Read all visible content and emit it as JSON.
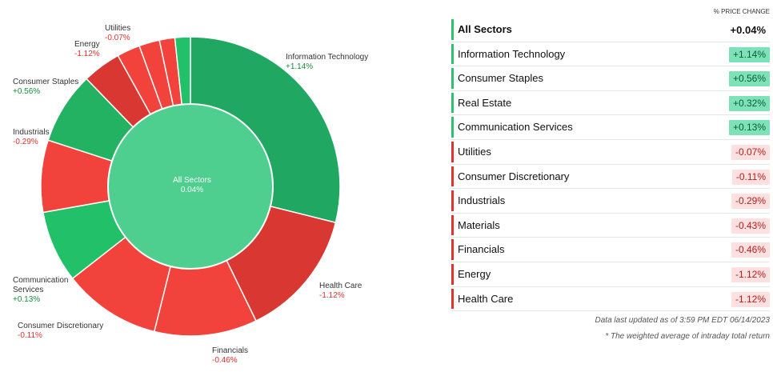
{
  "chart_data": {
    "type": "pie",
    "variant": "donut",
    "center": {
      "title": "All Sectors",
      "value": "0.04%"
    },
    "slices": [
      {
        "name": "Information Technology",
        "value": 1.14,
        "label": "+1.14%",
        "color": "#20a862"
      },
      {
        "name": "Health Care",
        "value": -1.12,
        "label": "-1.12%",
        "color": "#d93832"
      },
      {
        "name": "Financials",
        "value": -0.46,
        "label": "-0.46%",
        "color": "#f1433c"
      },
      {
        "name": "Consumer Discretionary",
        "value": -0.11,
        "label": "-0.11%",
        "color": "#f1433c"
      },
      {
        "name": "Communication Services",
        "value": 0.13,
        "label": "+0.13%",
        "color": "#22c069"
      },
      {
        "name": "Industrials",
        "value": -0.29,
        "label": "-0.29%",
        "color": "#f1433c"
      },
      {
        "name": "Consumer Staples",
        "value": 0.56,
        "label": "+0.56%",
        "color": "#22b262"
      },
      {
        "name": "Energy",
        "value": -1.12,
        "label": "-1.12%",
        "color": "#d93832"
      },
      {
        "name": "Materials",
        "value": -0.43,
        "label": "",
        "color": "#f1433c"
      },
      {
        "name": "Real Estate",
        "value": 0.32,
        "label": "",
        "color": "#f1433c"
      },
      {
        "name": "Utilities",
        "value": -0.07,
        "label": "-0.07%",
        "color": "#f1433c"
      },
      {
        "name": "",
        "value": null,
        "label": "",
        "color": "#22c069"
      }
    ]
  },
  "table": {
    "header": "% PRICE CHANGE",
    "rows": [
      {
        "name": "All Sectors",
        "value": "+0.04%",
        "dir": "pos",
        "total": true
      },
      {
        "name": "Information Technology",
        "value": "+1.14%",
        "dir": "pos"
      },
      {
        "name": "Consumer Staples",
        "value": "+0.56%",
        "dir": "pos"
      },
      {
        "name": "Real Estate",
        "value": "+0.32%",
        "dir": "pos"
      },
      {
        "name": "Communication Services",
        "value": "+0.13%",
        "dir": "pos"
      },
      {
        "name": "Utilities",
        "value": "-0.07%",
        "dir": "neg"
      },
      {
        "name": "Consumer Discretionary",
        "value": "-0.11%",
        "dir": "neg"
      },
      {
        "name": "Industrials",
        "value": "-0.29%",
        "dir": "neg"
      },
      {
        "name": "Materials",
        "value": "-0.43%",
        "dir": "neg"
      },
      {
        "name": "Financials",
        "value": "-0.46%",
        "dir": "neg"
      },
      {
        "name": "Energy",
        "value": "-1.12%",
        "dir": "neg"
      },
      {
        "name": "Health Care",
        "value": "-1.12%",
        "dir": "neg"
      }
    ],
    "footnote_updated": "Data last updated as of 3:59 PM EDT 06/14/2023",
    "footnote_weighted": "* The weighted average of intraday total return"
  },
  "colors": {
    "pos_bar": "#2fbf71",
    "neg_bar": "#e0322d",
    "pos_chip_bg": "#7ee2b8",
    "neg_chip_bg": "#fde0df",
    "pos_text": "#0b5c35",
    "neg_text": "#b3201b",
    "center_fill": "#4ecf8f"
  }
}
